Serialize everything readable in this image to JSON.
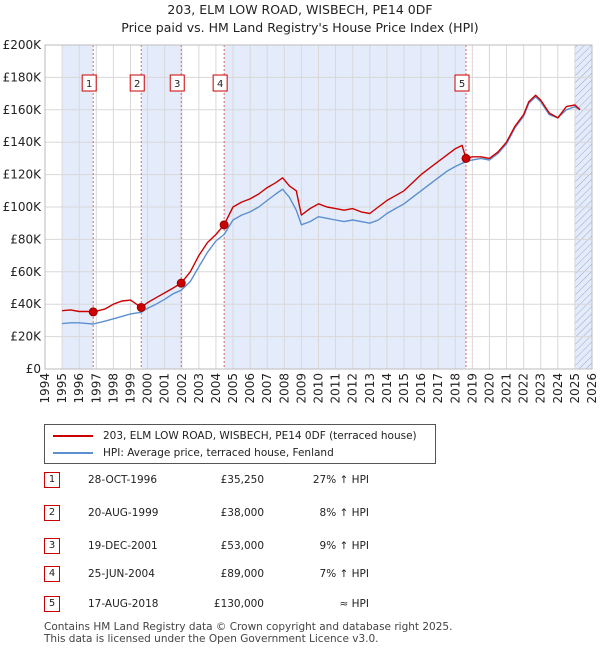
{
  "title_line1": "203, ELM LOW ROAD, WISBECH, PE14 0DF",
  "title_line2": "Price paid vs. HM Land Registry's House Price Index (HPI)",
  "colors": {
    "price_line": "#cc0000",
    "hpi_line": "#5b8fd0",
    "shade": "#e4ecfb",
    "marker_border": "#cc0000",
    "grid": "#d8d8d8"
  },
  "chart_data": {
    "type": "line",
    "title": "Price paid vs. HM Land Registry's House Price Index (HPI)",
    "xlabel": "",
    "ylabel": "",
    "xlim": [
      1994,
      2026
    ],
    "ylim": [
      0,
      200000
    ],
    "grid": true,
    "x_ticks": [
      1994,
      1995,
      1996,
      1997,
      1998,
      1999,
      2000,
      2001,
      2002,
      2003,
      2004,
      2005,
      2006,
      2007,
      2008,
      2009,
      2010,
      2011,
      2012,
      2013,
      2014,
      2015,
      2016,
      2017,
      2018,
      2019,
      2020,
      2021,
      2022,
      2023,
      2024,
      2025,
      2026
    ],
    "y_ticks": [
      {
        "value": 0,
        "label": "£0"
      },
      {
        "value": 20000,
        "label": "£20K"
      },
      {
        "value": 40000,
        "label": "£40K"
      },
      {
        "value": 60000,
        "label": "£60K"
      },
      {
        "value": 80000,
        "label": "£80K"
      },
      {
        "value": 100000,
        "label": "£100K"
      },
      {
        "value": 120000,
        "label": "£120K"
      },
      {
        "value": 140000,
        "label": "£140K"
      },
      {
        "value": 160000,
        "label": "£160K"
      },
      {
        "value": 180000,
        "label": "£180K"
      },
      {
        "value": 200000,
        "label": "£200K"
      }
    ],
    "shaded_ranges": [
      [
        1995.0,
        1996.82
      ],
      [
        1999.63,
        2001.97
      ],
      [
        2004.48,
        2018.63
      ],
      [
        2025.0,
        2026.0
      ]
    ],
    "hatched_range": [
      2025.0,
      2026.0
    ],
    "series": [
      {
        "name": "203, ELM LOW ROAD, WISBECH, PE14 0DF (terraced house)",
        "color": "#cc0000",
        "x": [
          1995.0,
          1995.5,
          1996.0,
          1996.5,
          1996.82,
          1997.5,
          1998.0,
          1998.5,
          1999.0,
          1999.63,
          2000.0,
          2000.5,
          2001.0,
          2001.5,
          2001.97,
          2002.5,
          2003.0,
          2003.5,
          2004.0,
          2004.48,
          2005.0,
          2005.5,
          2006.0,
          2006.5,
          2007.0,
          2007.5,
          2007.9,
          2008.3,
          2008.7,
          2009.0,
          2009.5,
          2010.0,
          2010.5,
          2011.0,
          2011.5,
          2012.0,
          2012.5,
          2013.0,
          2013.5,
          2014.0,
          2014.5,
          2015.0,
          2015.5,
          2016.0,
          2016.5,
          2017.0,
          2017.5,
          2018.0,
          2018.4,
          2018.63,
          2019.0,
          2019.5,
          2020.0,
          2020.5,
          2021.0,
          2021.5,
          2022.0,
          2022.3,
          2022.7,
          2023.0,
          2023.5,
          2024.0,
          2024.5,
          2025.0,
          2025.3
        ],
        "y": [
          36000,
          36500,
          35500,
          35500,
          35250,
          37000,
          40000,
          42000,
          42500,
          38000,
          41000,
          44000,
          47000,
          50000,
          53000,
          60000,
          70000,
          78000,
          83000,
          89000,
          100000,
          103000,
          105000,
          108000,
          112000,
          115000,
          118000,
          113000,
          110000,
          95000,
          99000,
          102000,
          100000,
          99000,
          98000,
          99000,
          97000,
          96000,
          100000,
          104000,
          107000,
          110000,
          115000,
          120000,
          124000,
          128000,
          132000,
          136000,
          138000,
          130000,
          131000,
          131000,
          130000,
          134000,
          140000,
          150000,
          157000,
          165000,
          169000,
          166000,
          158000,
          155000,
          162000,
          163000,
          160000
        ]
      },
      {
        "name": "HPI: Average price, terraced house, Fenland",
        "color": "#5b8fd0",
        "x": [
          1995.0,
          1995.5,
          1996.0,
          1996.5,
          1996.82,
          1997.5,
          1998.0,
          1998.5,
          1999.0,
          1999.63,
          2000.0,
          2000.5,
          2001.0,
          2001.5,
          2001.97,
          2002.5,
          2003.0,
          2003.5,
          2004.0,
          2004.48,
          2005.0,
          2005.5,
          2006.0,
          2006.5,
          2007.0,
          2007.5,
          2007.9,
          2008.3,
          2008.7,
          2009.0,
          2009.5,
          2010.0,
          2010.5,
          2011.0,
          2011.5,
          2012.0,
          2012.5,
          2013.0,
          2013.5,
          2014.0,
          2014.5,
          2015.0,
          2015.5,
          2016.0,
          2016.5,
          2017.0,
          2017.5,
          2018.0,
          2018.4,
          2018.63,
          2019.0,
          2019.5,
          2020.0,
          2020.5,
          2021.0,
          2021.5,
          2022.0,
          2022.3,
          2022.7,
          2023.0,
          2023.5,
          2024.0,
          2024.5,
          2025.0,
          2025.3
        ],
        "y": [
          28000,
          28500,
          28500,
          28000,
          27800,
          29500,
          31000,
          32500,
          34000,
          35000,
          37500,
          40000,
          43000,
          46500,
          48600,
          54000,
          63000,
          72000,
          79000,
          83000,
          92000,
          95000,
          97000,
          100000,
          104000,
          108000,
          111000,
          106000,
          98000,
          89000,
          91000,
          94000,
          93000,
          92000,
          91000,
          92000,
          91000,
          90000,
          92000,
          96000,
          99000,
          102000,
          106000,
          110000,
          114000,
          118000,
          122000,
          125000,
          127000,
          128000,
          129000,
          130000,
          129000,
          133000,
          139000,
          149000,
          156000,
          164000,
          168000,
          165000,
          157000,
          155000,
          160000,
          162000,
          160000
        ]
      }
    ],
    "sales": [
      {
        "label": "1",
        "year": 1996.82,
        "price": 35250
      },
      {
        "label": "2",
        "year": 1999.63,
        "price": 38000
      },
      {
        "label": "3",
        "year": 2001.97,
        "price": 53000
      },
      {
        "label": "4",
        "year": 2004.48,
        "price": 89000
      },
      {
        "label": "5",
        "year": 2018.63,
        "price": 130000
      }
    ]
  },
  "legend": {
    "series1_label": "203, ELM LOW ROAD, WISBECH, PE14 0DF (terraced house)",
    "series2_label": "HPI: Average price, terraced house, Fenland"
  },
  "sales_table": [
    {
      "num": "1",
      "date": "28-OCT-1996",
      "price": "£35,250",
      "hpi": "27% ↑ HPI"
    },
    {
      "num": "2",
      "date": "20-AUG-1999",
      "price": "£38,000",
      "hpi": "8% ↑ HPI"
    },
    {
      "num": "3",
      "date": "19-DEC-2001",
      "price": "£53,000",
      "hpi": "9% ↑ HPI"
    },
    {
      "num": "4",
      "date": "25-JUN-2004",
      "price": "£89,000",
      "hpi": "7% ↑ HPI"
    },
    {
      "num": "5",
      "date": "17-AUG-2018",
      "price": "£130,000",
      "hpi": "≈ HPI"
    }
  ],
  "footer_line1": "Contains HM Land Registry data © Crown copyright and database right 2025.",
  "footer_line2": "This data is licensed under the Open Government Licence v3.0."
}
